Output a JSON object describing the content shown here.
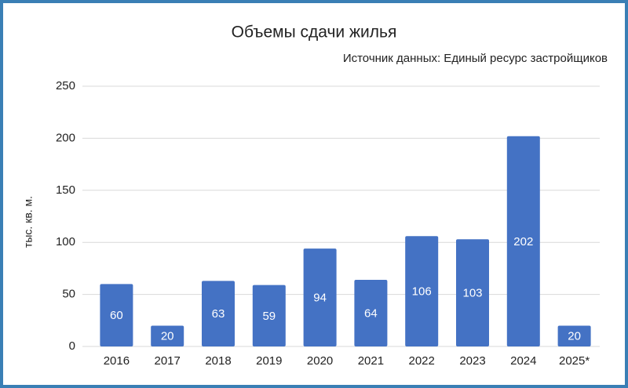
{
  "chart_data": {
    "type": "bar",
    "title": "Объемы сдачи жилья",
    "subtitle": "Источник данных: Единый ресурс застройщиков",
    "y_label": "тыс. кв. м.",
    "categories": [
      "2016",
      "2017",
      "2018",
      "2019",
      "2020",
      "2021",
      "2022",
      "2023",
      "2024",
      "2025*"
    ],
    "values": [
      60,
      20,
      63,
      59,
      94,
      64,
      106,
      103,
      202,
      20
    ],
    "color": "#4472c4",
    "ylim": [
      0,
      250
    ],
    "yticks": [
      0,
      50,
      100,
      150,
      200,
      250
    ],
    "grid": true
  }
}
